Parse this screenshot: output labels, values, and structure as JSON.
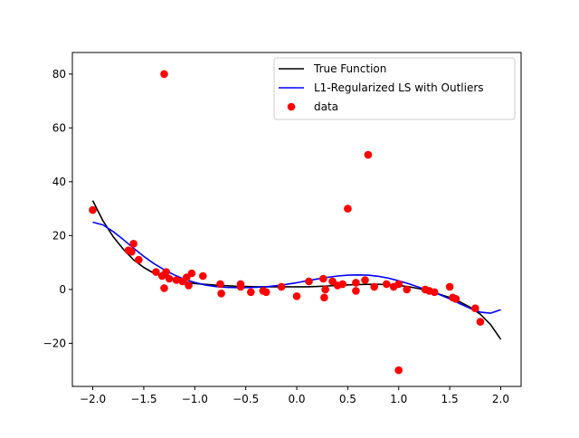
{
  "chart_data": {
    "type": "scatter",
    "title": "",
    "xlabel": "",
    "ylabel": "",
    "xlim": [
      -2.2,
      2.2
    ],
    "ylim": [
      -36,
      88
    ],
    "grid": false,
    "legend_position": "top-right",
    "x_ticks": [
      -2.0,
      -1.5,
      -1.0,
      -0.5,
      0.0,
      0.5,
      1.0,
      1.5,
      2.0
    ],
    "x_tick_labels": [
      "−2.0",
      "−1.5",
      "−1.0",
      "−0.5",
      "0.0",
      "0.5",
      "1.0",
      "1.5",
      "2.0"
    ],
    "y_ticks": [
      -20,
      0,
      20,
      40,
      60,
      80
    ],
    "y_tick_labels": [
      "−20",
      "0",
      "20",
      "40",
      "60",
      "80"
    ],
    "series": [
      {
        "name": "True Function",
        "kind": "line",
        "color": "#000000",
        "x": [
          -2.0,
          -1.9,
          -1.8,
          -1.7,
          -1.6,
          -1.5,
          -1.4,
          -1.3,
          -1.2,
          -1.1,
          -1.0,
          -0.9,
          -0.8,
          -0.7,
          -0.6,
          -0.5,
          -0.4,
          -0.3,
          -0.2,
          -0.1,
          0.0,
          0.1,
          0.2,
          0.3,
          0.4,
          0.5,
          0.6,
          0.7,
          0.8,
          0.9,
          1.0,
          1.1,
          1.2,
          1.3,
          1.4,
          1.5,
          1.6,
          1.7,
          1.8,
          1.9,
          2.0
        ],
        "y": [
          33.0,
          25.5,
          19.6,
          14.9,
          11.0,
          8.2,
          6.0,
          4.6,
          3.6,
          2.8,
          2.2,
          1.9,
          1.6,
          1.4,
          1.2,
          1.1,
          1.0,
          1.0,
          1.0,
          1.0,
          1.0,
          1.0,
          1.1,
          1.3,
          1.5,
          1.7,
          1.8,
          1.9,
          1.9,
          1.8,
          1.5,
          1.0,
          0.3,
          -0.6,
          -1.8,
          -3.0,
          -4.6,
          -6.6,
          -9.2,
          -13.0,
          -18.5
        ]
      },
      {
        "name": "L1-Regularized LS with Outliers",
        "kind": "line",
        "color": "#0000ff",
        "x": [
          -2.0,
          -1.9,
          -1.8,
          -1.7,
          -1.6,
          -1.5,
          -1.4,
          -1.3,
          -1.2,
          -1.1,
          -1.0,
          -0.9,
          -0.8,
          -0.7,
          -0.6,
          -0.5,
          -0.4,
          -0.3,
          -0.2,
          -0.1,
          0.0,
          0.1,
          0.2,
          0.3,
          0.4,
          0.5,
          0.6,
          0.7,
          0.8,
          0.9,
          1.0,
          1.1,
          1.2,
          1.3,
          1.4,
          1.5,
          1.6,
          1.7,
          1.8,
          1.9,
          2.0
        ],
        "y": [
          25.0,
          24.0,
          21.5,
          18.5,
          15.3,
          12.3,
          9.6,
          7.3,
          5.4,
          3.8,
          2.6,
          1.7,
          1.1,
          0.8,
          0.7,
          0.7,
          0.8,
          1.0,
          1.4,
          1.9,
          2.5,
          3.2,
          3.9,
          4.5,
          5.0,
          5.3,
          5.4,
          5.3,
          4.9,
          4.2,
          3.2,
          2.1,
          0.8,
          -0.5,
          -1.9,
          -3.5,
          -5.3,
          -7.0,
          -8.4,
          -8.8,
          -7.5
        ]
      },
      {
        "name": "data",
        "kind": "scatter",
        "color": "#ff0000",
        "x": [
          -2.0,
          -1.65,
          -1.62,
          -1.6,
          -1.55,
          -1.38,
          -1.32,
          -1.3,
          -1.28,
          -1.3,
          -1.25,
          -1.18,
          -1.12,
          -1.08,
          -1.06,
          -1.03,
          -0.92,
          -0.75,
          -0.74,
          -0.55,
          -0.55,
          -0.45,
          -0.33,
          -0.3,
          -0.15,
          0.0,
          0.12,
          0.26,
          0.27,
          0.28,
          0.35,
          0.4,
          0.45,
          0.58,
          0.58,
          0.67,
          0.76,
          0.88,
          0.95,
          1.0,
          1.08,
          1.26,
          1.3,
          1.35,
          1.5,
          1.53,
          1.56,
          1.75,
          1.8,
          -1.3,
          0.5,
          0.7,
          1.0
        ],
        "y": [
          29.5,
          14.5,
          14.0,
          17.0,
          11.0,
          6.5,
          5.0,
          0.5,
          6.5,
          5.5,
          4.0,
          3.5,
          3.0,
          4.5,
          1.5,
          6.0,
          5.0,
          2.0,
          -1.5,
          1.0,
          2.0,
          -1.0,
          -0.5,
          -1.0,
          1.0,
          -2.5,
          3.0,
          4.0,
          -3.0,
          0.0,
          3.0,
          1.5,
          2.0,
          -0.5,
          2.5,
          3.5,
          1.0,
          2.0,
          1.0,
          2.0,
          0.0,
          0.0,
          -0.5,
          -1.0,
          1.0,
          -3.0,
          -3.5,
          -7.0,
          -12.0,
          80.0,
          30.0,
          50.0,
          -30.0
        ]
      }
    ]
  }
}
